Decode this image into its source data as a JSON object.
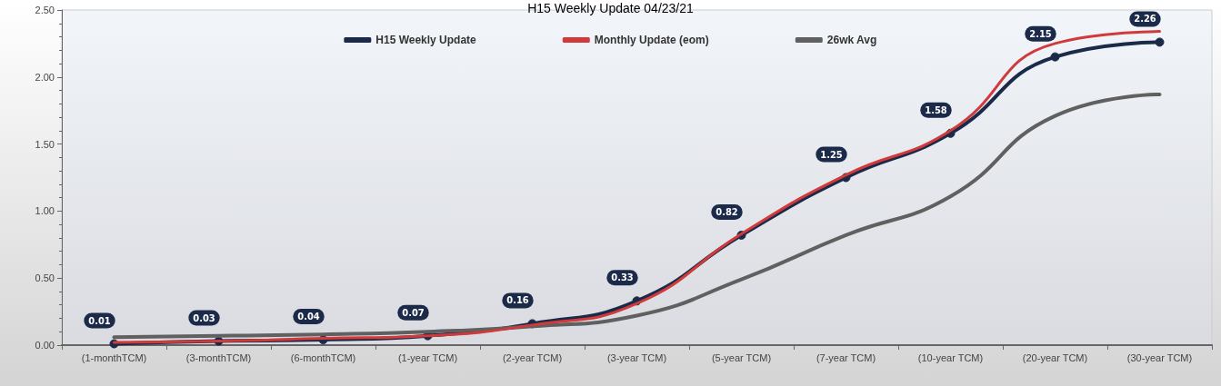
{
  "chart_data": {
    "type": "line",
    "title": "H15 Weekly Update 04/23/21",
    "categories": [
      "(1-monthTCM)",
      "(3-monthTCM)",
      "(6-monthTCM)",
      "(1-year TCM)",
      "(2-year TCM)",
      "(3-year TCM)",
      "(5-year TCM)",
      "(7-year TCM)",
      "(10-year TCM)",
      "(20-year TCM)",
      "(30-year TCM)"
    ],
    "series": [
      {
        "name": "H15 Weekly Update",
        "color": "#1b2a48",
        "marker": "circle",
        "values": [
          0.01,
          0.03,
          0.04,
          0.07,
          0.16,
          0.33,
          0.82,
          1.25,
          1.58,
          2.15,
          2.26
        ],
        "value_labels": [
          "0.01",
          "0.03",
          "0.04",
          "0.07",
          "0.16",
          "0.33",
          "0.82",
          "1.25",
          "1.58",
          "2.15",
          "2.26"
        ]
      },
      {
        "name": "Monthly Update (eom)",
        "color": "#d03a3a",
        "marker": "none",
        "values": [
          0.02,
          0.03,
          0.05,
          0.07,
          0.15,
          0.31,
          0.83,
          1.27,
          1.6,
          2.25,
          2.34
        ]
      },
      {
        "name": "26wk Avg",
        "color": "#606060",
        "marker": "none",
        "values": [
          0.06,
          0.07,
          0.08,
          0.1,
          0.14,
          0.22,
          0.49,
          0.82,
          1.11,
          1.71,
          1.87
        ]
      }
    ],
    "ylim": [
      0,
      2.5
    ],
    "yticks": [
      {
        "value": 0,
        "label": "0.00"
      },
      {
        "value": 0.5,
        "label": "0.50"
      },
      {
        "value": 1,
        "label": "1.00"
      },
      {
        "value": 1.5,
        "label": "1.50"
      },
      {
        "value": 2,
        "label": "2.00"
      },
      {
        "value": 2.5,
        "label": "2.50"
      }
    ],
    "grid": false,
    "legend": "top"
  }
}
